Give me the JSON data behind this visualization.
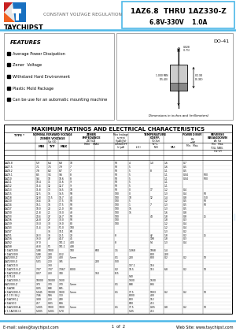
{
  "title_part": "1AZ6.8  THRU 1AZ330-Z",
  "title_sub": "6.8V-330V    1.0A",
  "company": "TAYCHIPST",
  "subtitle": "CONSTANT VOLTAGE REGULATION",
  "package": "DO-41",
  "features_title": "FEATURES",
  "features": [
    "Average Power Dissipation",
    "Zener  Voltage",
    "Withstand Hard Environment",
    "Plastic Mold Package",
    "Can be use for an automatic mounting machine"
  ],
  "dim_note": "Dimensions in inches and (millimeters)",
  "table_title": "MAXIMUM RATINGS AND ELECTRICAL CHARACTERISTICS",
  "footer_left": "E-mail: sales@taychipst.com",
  "footer_mid": "1  of  2",
  "footer_right": "Web Site: www.taychipst.com",
  "bg_color": "#ffffff",
  "header_line_color": "#4db8e8",
  "footer_line_color": "#4db8e8",
  "watermark_blue": "#b8d8f0",
  "watermark_orange": "#f0d080"
}
